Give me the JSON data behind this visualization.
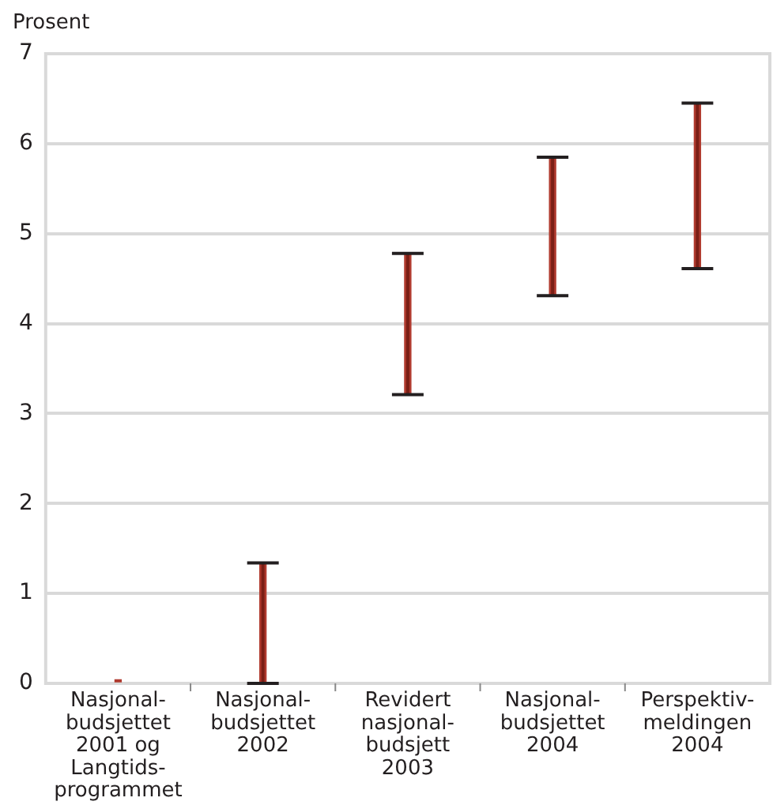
{
  "chart_data": {
    "type": "bar",
    "ylabel": "Prosent",
    "categories": [
      "Nasjonal-\nbudsjettet\n2001 og\nLangtids-\nprogrammet",
      "Nasjonal-\nbudsjettet\n2002",
      "Revidert\nnasjonal-\nbudsjett\n2003",
      "Nasjonal-\nbudsjettet\n2004",
      "Perspektiv-\nmeldingen\n2004"
    ],
    "base": [
      0,
      0,
      3.21,
      4.31,
      4.61
    ],
    "values": [
      0.04,
      1.34,
      1.57,
      1.54,
      1.84
    ],
    "color": "#b03a2e",
    "errors": [
      null,
      [
        0,
        1.34
      ],
      [
        3.21,
        4.78
      ],
      [
        4.31,
        5.85
      ],
      [
        4.61,
        6.45
      ]
    ],
    "ylim": [
      0,
      7
    ],
    "yticks": [
      0,
      1,
      2,
      3,
      4,
      5,
      6,
      7
    ],
    "grid": "y",
    "legend": false
  }
}
